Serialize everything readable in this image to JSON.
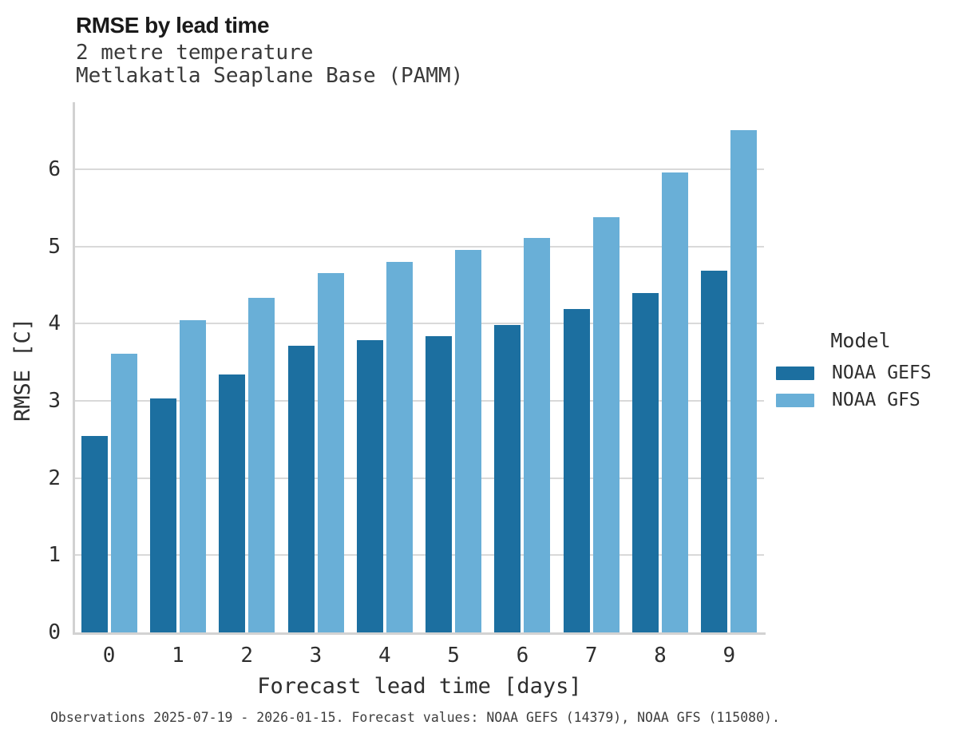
{
  "title": "RMSE by lead time",
  "subtitle_lines": [
    "2 metre temperature",
    "Metlakatla Seaplane Base (PAMM)"
  ],
  "footer": "Observations 2025-07-19 - 2026-01-15. Forecast values: NOAA GEFS (14379), NOAA GFS (115080).",
  "colors": {
    "gefs_bar": "#1c6fa0",
    "gfs_bar": "#69afd7",
    "gridline": "#d9d9d9",
    "spine": "#d2d2d2",
    "text": "#2e2e2e"
  },
  "legend": {
    "title": "Model",
    "items": [
      {
        "label": "NOAA GEFS",
        "color": "#1c6fa0"
      },
      {
        "label": "NOAA GFS",
        "color": "#69afd7"
      }
    ]
  },
  "chart_data": {
    "type": "bar",
    "title": "RMSE by lead time",
    "subtitle": "2 metre temperature",
    "station": "Metlakatla Seaplane Base (PAMM)",
    "xlabel": "Forecast lead time [days]",
    "ylabel": "RMSE [C]",
    "categories": [
      "0",
      "1",
      "2",
      "3",
      "4",
      "5",
      "6",
      "7",
      "8",
      "9"
    ],
    "series": [
      {
        "name": "NOAA GEFS",
        "color": "#1c6fa0",
        "values": [
          2.55,
          3.03,
          3.34,
          3.71,
          3.79,
          3.84,
          3.98,
          4.19,
          4.4,
          4.69
        ]
      },
      {
        "name": "NOAA GFS",
        "color": "#69afd7",
        "values": [
          3.61,
          4.05,
          4.34,
          4.66,
          4.8,
          4.96,
          5.11,
          5.38,
          5.96,
          6.51
        ]
      }
    ],
    "ylim": [
      0,
      6.87
    ],
    "yticks": [
      0,
      1,
      2,
      3,
      4,
      5,
      6
    ],
    "grid": true,
    "legend_title": "Model",
    "legend_position": "right-center"
  }
}
